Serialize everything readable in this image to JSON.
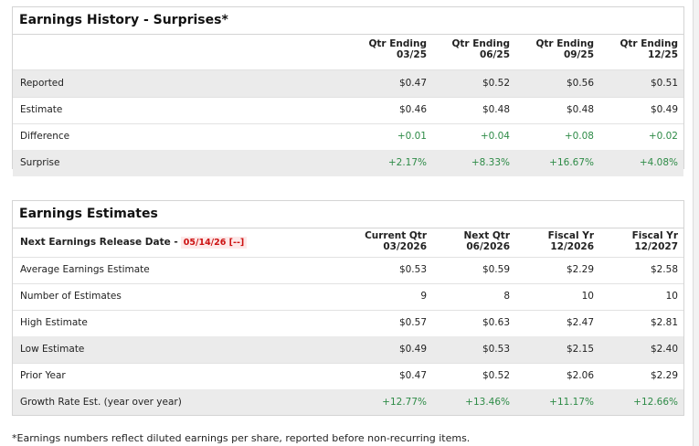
{
  "history": {
    "title": "Earnings History - Surprises*",
    "columns": [
      {
        "line1": "Qtr Ending",
        "line2": "03/25"
      },
      {
        "line1": "Qtr Ending",
        "line2": "06/25"
      },
      {
        "line1": "Qtr Ending",
        "line2": "09/25"
      },
      {
        "line1": "Qtr Ending",
        "line2": "12/25"
      }
    ],
    "rows": [
      {
        "label": "Reported",
        "values": [
          "$0.47",
          "$0.52",
          "$0.56",
          "$0.51"
        ]
      },
      {
        "label": "Estimate",
        "values": [
          "$0.46",
          "$0.48",
          "$0.48",
          "$0.49"
        ]
      },
      {
        "label": "Difference",
        "values": [
          "+0.01",
          "+0.04",
          "+0.08",
          "+0.02"
        ]
      },
      {
        "label": "Surprise",
        "values": [
          "+2.17%",
          "+8.33%",
          "+16.67%",
          "+4.08%"
        ]
      }
    ]
  },
  "estimates": {
    "title": "Earnings Estimates",
    "release_label": "Next Earnings Release Date -",
    "release_date": "05/14/26 [--]",
    "columns": [
      {
        "line1": "Current Qtr",
        "line2": "03/2026"
      },
      {
        "line1": "Next Qtr",
        "line2": "06/2026"
      },
      {
        "line1": "Fiscal Yr",
        "line2": "12/2026"
      },
      {
        "line1": "Fiscal Yr",
        "line2": "12/2027"
      }
    ],
    "rows": [
      {
        "label": "Average Earnings Estimate",
        "values": [
          "$0.53",
          "$0.59",
          "$2.29",
          "$2.58"
        ]
      },
      {
        "label": "Number of Estimates",
        "values": [
          "9",
          "8",
          "10",
          "10"
        ]
      },
      {
        "label": "High Estimate",
        "values": [
          "$0.57",
          "$0.63",
          "$2.47",
          "$2.81"
        ]
      },
      {
        "label": "Low Estimate",
        "values": [
          "$0.49",
          "$0.53",
          "$2.15",
          "$2.40"
        ]
      },
      {
        "label": "Prior Year",
        "values": [
          "$0.47",
          "$0.52",
          "$2.06",
          "$2.29"
        ]
      },
      {
        "label": "Growth Rate Est. (year over year)",
        "values": [
          "+12.77%",
          "+13.46%",
          "+11.17%",
          "+12.66%"
        ]
      }
    ]
  },
  "footnote": "*Earnings numbers reflect diluted earnings per share, reported before non-recurring items.",
  "colors": {
    "positive": "#2e8b47",
    "release_date": "#cc1111",
    "stripe": "#ebebeb"
  }
}
